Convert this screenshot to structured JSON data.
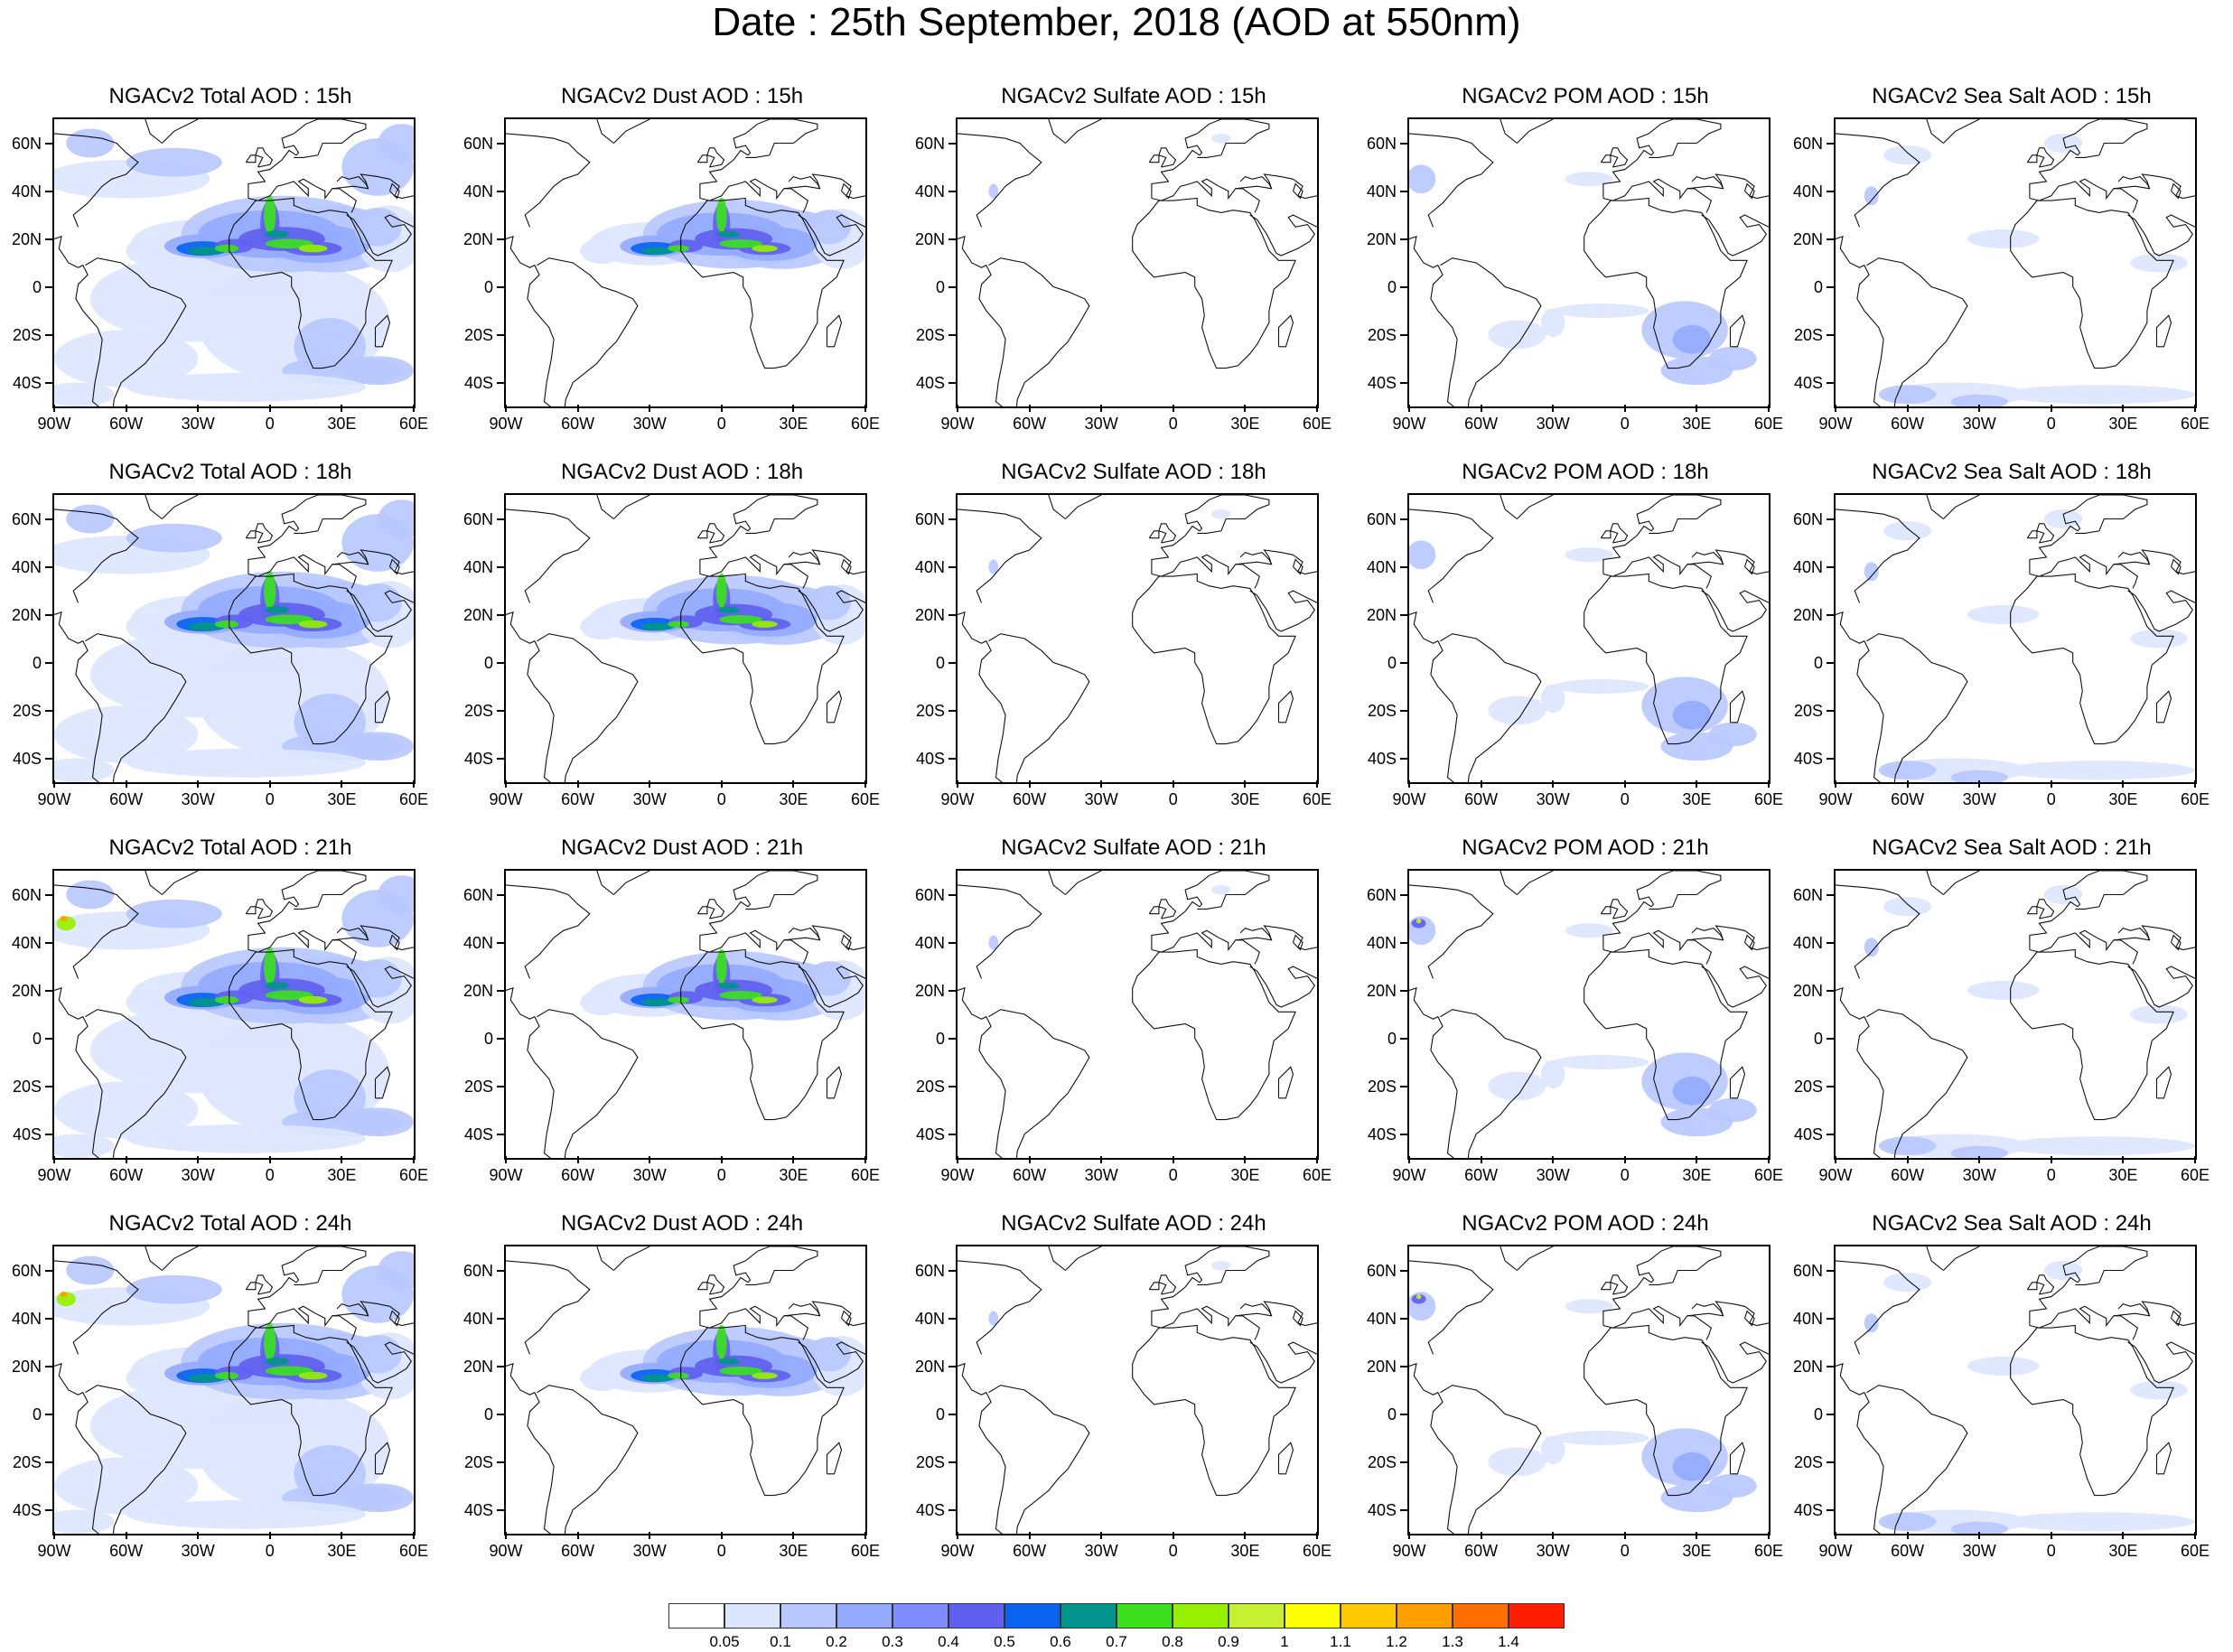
{
  "title": "Date : 25th September, 2018 (AOD at 550nm)",
  "axes": {
    "lat_labels": [
      "60N",
      "40N",
      "20N",
      "0",
      "20S",
      "40S"
    ],
    "lat_values": [
      60,
      40,
      20,
      0,
      -20,
      -40
    ],
    "lon_labels": [
      "90W",
      "60W",
      "30W",
      "0",
      "30E",
      "60E"
    ],
    "lon_values": [
      -90,
      -60,
      -30,
      0,
      30,
      60
    ],
    "lon_range": [
      -90,
      60
    ],
    "lat_range": [
      -50,
      70
    ]
  },
  "panels": [
    {
      "title": "NGACv2 Total AOD : 15h",
      "species": "total",
      "hour": 15
    },
    {
      "title": "NGACv2 Dust AOD : 15h",
      "species": "dust",
      "hour": 15
    },
    {
      "title": "NGACv2 Sulfate AOD : 15h",
      "species": "sulfate",
      "hour": 15
    },
    {
      "title": "NGACv2 POM AOD : 15h",
      "species": "pom",
      "hour": 15
    },
    {
      "title": "NGACv2 Sea Salt AOD : 15h",
      "species": "seasalt",
      "hour": 15
    },
    {
      "title": "NGACv2 Total AOD : 18h",
      "species": "total",
      "hour": 18
    },
    {
      "title": "NGACv2 Dust AOD : 18h",
      "species": "dust",
      "hour": 18
    },
    {
      "title": "NGACv2 Sulfate AOD : 18h",
      "species": "sulfate",
      "hour": 18
    },
    {
      "title": "NGACv2 POM AOD : 18h",
      "species": "pom",
      "hour": 18
    },
    {
      "title": "NGACv2 Sea Salt AOD : 18h",
      "species": "seasalt",
      "hour": 18
    },
    {
      "title": "NGACv2 Total AOD : 21h",
      "species": "total",
      "hour": 21
    },
    {
      "title": "NGACv2 Dust AOD : 21h",
      "species": "dust",
      "hour": 21
    },
    {
      "title": "NGACv2 Sulfate AOD : 21h",
      "species": "sulfate",
      "hour": 21
    },
    {
      "title": "NGACv2 POM AOD : 21h",
      "species": "pom",
      "hour": 21
    },
    {
      "title": "NGACv2 Sea Salt AOD : 21h",
      "species": "seasalt",
      "hour": 21
    },
    {
      "title": "NGACv2 Total AOD : 24h",
      "species": "total",
      "hour": 24
    },
    {
      "title": "NGACv2 Dust AOD : 24h",
      "species": "dust",
      "hour": 24
    },
    {
      "title": "NGACv2 Sulfate AOD : 24h",
      "species": "sulfate",
      "hour": 24
    },
    {
      "title": "NGACv2 POM AOD : 24h",
      "species": "pom",
      "hour": 24
    },
    {
      "title": "NGACv2 Sea Salt  AOD : 24h",
      "species": "seasalt",
      "hour": 24
    }
  ],
  "colorbar": {
    "labels": [
      "0.05",
      "0.1",
      "0.2",
      "0.3",
      "0.4",
      "0.5",
      "0.6",
      "0.7",
      "0.8",
      "0.9",
      "1",
      "1.1",
      "1.2",
      "1.3",
      "1.4"
    ],
    "colors": [
      "#ffffff",
      "#dde6ff",
      "#b8c8ff",
      "#94aaff",
      "#7f8cff",
      "#5f60f0",
      "#0a64f0",
      "#00948c",
      "#3ce01e",
      "#96f000",
      "#c8f032",
      "#ffff00",
      "#ffc800",
      "#ffa000",
      "#ff6e00",
      "#ff1e00"
    ]
  }
}
